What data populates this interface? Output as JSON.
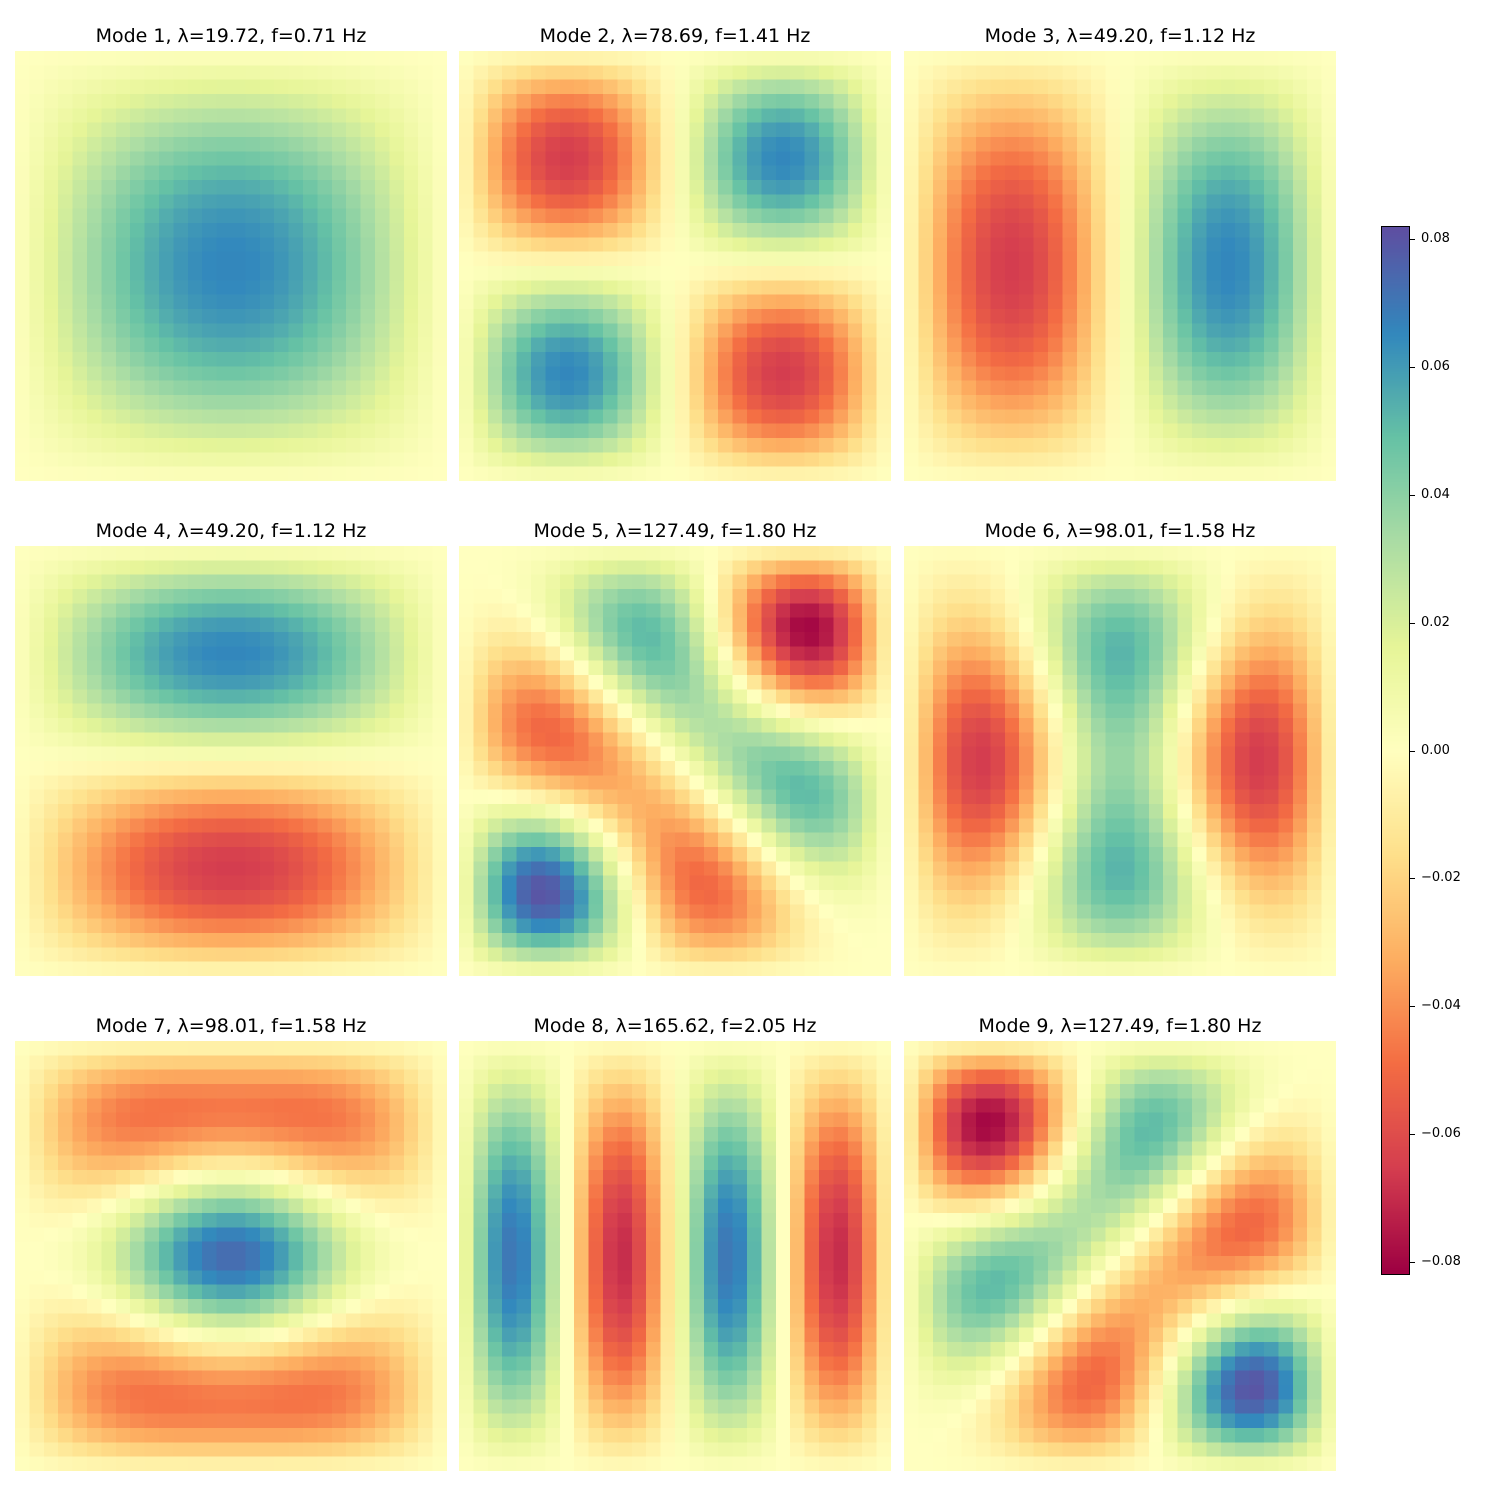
{
  "chart_data": {
    "type": "heatmap",
    "colormap": "Spectral",
    "grid": false,
    "domain": "unit square",
    "grid_resolution": [
      30,
      30
    ],
    "colorbar": {
      "vmin": -0.082,
      "vmax": 0.082,
      "ticks": [
        0.08,
        0.06,
        0.04,
        0.02,
        0.0,
        -0.02,
        -0.04,
        -0.06,
        -0.08
      ],
      "tick_labels": [
        "0.08",
        "0.06",
        "0.04",
        "0.02",
        "0.00",
        "−0.02",
        "−0.04",
        "−0.06",
        "−0.08"
      ],
      "placement": "right"
    },
    "panels": [
      {
        "title": "Mode 1, λ=19.72, f=0.71 Hz",
        "mode": 1,
        "lambda": 19.72,
        "f_hz": 0.71,
        "amplitude": 0.066,
        "components": [
          {
            "m": 1,
            "n": 1,
            "c": 1
          }
        ]
      },
      {
        "title": "Mode 2, λ=78.69, f=1.41 Hz",
        "mode": 2,
        "lambda": 78.69,
        "f_hz": 1.41,
        "amplitude": 0.066,
        "components": [
          {
            "m": 2,
            "n": 2,
            "c": 1
          }
        ]
      },
      {
        "title": "Mode 3, λ=49.20, f=1.12 Hz",
        "mode": 3,
        "lambda": 49.2,
        "f_hz": 1.12,
        "amplitude": 0.066,
        "components": [
          {
            "m": 2,
            "n": 1,
            "c": -1
          }
        ]
      },
      {
        "title": "Mode 4, λ=49.20, f=1.12 Hz",
        "mode": 4,
        "lambda": 49.2,
        "f_hz": 1.12,
        "amplitude": 0.066,
        "components": [
          {
            "m": 1,
            "n": 2,
            "c": -1
          }
        ]
      },
      {
        "title": "Mode 5, λ=127.49, f=1.80 Hz",
        "mode": 5,
        "lambda": 127.49,
        "f_hz": 1.8,
        "amplitude": 0.08,
        "components": [
          {
            "m": 3,
            "n": 2,
            "c": 0.7
          },
          {
            "m": 2,
            "n": 3,
            "c": 0.7
          }
        ]
      },
      {
        "title": "Mode 6, λ=98.01, f=1.58 Hz",
        "mode": 6,
        "lambda": 98.01,
        "f_hz": 1.58,
        "amplitude": 0.066,
        "components": [
          {
            "m": 3,
            "n": 1,
            "c": -0.75
          },
          {
            "m": 1,
            "n": 3,
            "c": 0.25
          }
        ]
      },
      {
        "title": "Mode 7, λ=98.01, f=1.58 Hz",
        "mode": 7,
        "lambda": 98.01,
        "f_hz": 1.58,
        "amplitude": 0.073,
        "components": [
          {
            "m": 1,
            "n": 3,
            "c": -0.75
          },
          {
            "m": 3,
            "n": 1,
            "c": -0.25
          }
        ]
      },
      {
        "title": "Mode 8, λ=165.62, f=2.05 Hz",
        "mode": 8,
        "lambda": 165.62,
        "f_hz": 2.05,
        "amplitude": 0.07,
        "components": [
          {
            "m": 4,
            "n": 1,
            "c": 1
          }
        ]
      },
      {
        "title": "Mode 9, λ=127.49, f=1.80 Hz",
        "mode": 9,
        "lambda": 127.49,
        "f_hz": 1.8,
        "amplitude": 0.08,
        "components": [
          {
            "m": 3,
            "n": 2,
            "c": 0.7
          },
          {
            "m": 2,
            "n": 3,
            "c": -0.7
          }
        ]
      }
    ]
  }
}
